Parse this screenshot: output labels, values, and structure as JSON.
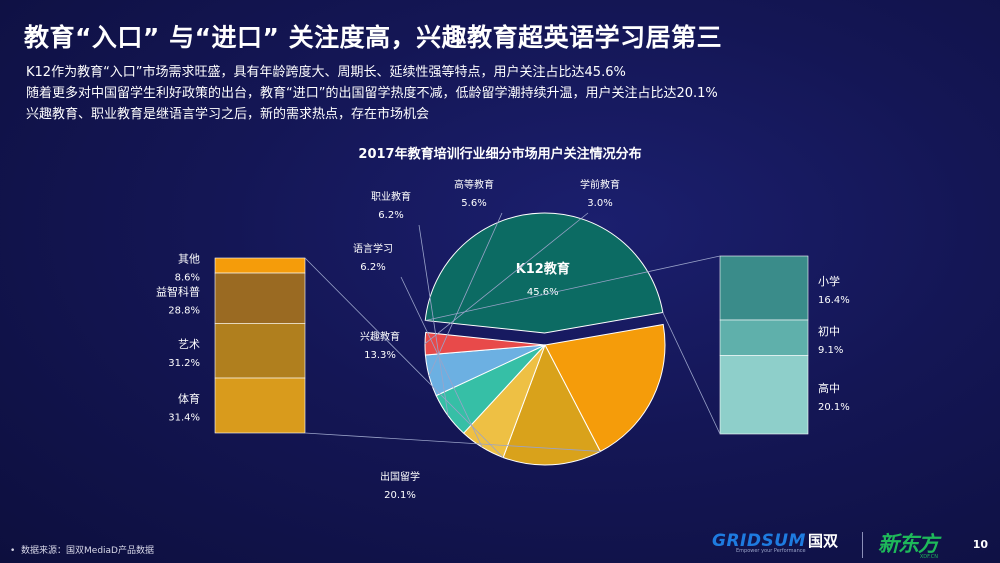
{
  "header": {
    "title": "教育“入口” 与“进口” 关注度高，兴趣教育超英语学习居第三",
    "bullets": [
      "K12作为教育“入口”市场需求旺盛，具有年龄跨度大、周期长、延续性强等特点，用户关注占比达45.6%",
      "随着更多对中国留学生利好政策的出台，教育“进口”的出国留学热度不减，低龄留学潮持续升温，用户关注占比达20.1%",
      "兴趣教育、职业教育是继语言学习之后，新的需求热点，存在市场机会"
    ]
  },
  "chart_data": {
    "type": "pie",
    "title": "2017年教育培训行业细分市场用户关注情况分布",
    "slices": [
      {
        "label": "K12教育",
        "value_label": "45.6%",
        "value": 45.6,
        "color": "#0c6b63"
      },
      {
        "label": "出国留学",
        "value_label": "20.1%",
        "value": 20.1,
        "color": "#f59c0a"
      },
      {
        "label": "兴趣教育",
        "value_label": "13.3%",
        "value": 13.3,
        "color": "#d9a21b"
      },
      {
        "label": "语言学习",
        "value_label": "6.2%",
        "value": 6.2,
        "color": "#eec044"
      },
      {
        "label": "职业教育",
        "value_label": "6.2%",
        "value": 6.2,
        "color": "#36bfa6"
      },
      {
        "label": "高等教育",
        "value_label": "5.6%",
        "value": 5.6,
        "color": "#6cb0e2"
      },
      {
        "label": "学前教育",
        "value_label": "3.0%",
        "value": 3.0,
        "color": "#e84a4a"
      }
    ],
    "left_breakdown": {
      "parent": "兴趣教育",
      "items": [
        {
          "label": "其他",
          "value_label": "8.6%",
          "value": 8.6,
          "color": "#f59c0a"
        },
        {
          "label": "益智科普",
          "value_label": "28.8%",
          "value": 28.8,
          "color": "#9a6a22"
        },
        {
          "label": "艺术",
          "value_label": "31.2%",
          "value": 31.2,
          "color": "#b07f1e"
        },
        {
          "label": "体育",
          "value_label": "31.4%",
          "value": 31.4,
          "color": "#d99b1c"
        }
      ]
    },
    "right_breakdown": {
      "parent": "K12教育",
      "items": [
        {
          "label": "小学",
          "value_label": "16.4%",
          "value": 16.4,
          "color": "#3a8c8a"
        },
        {
          "label": "初中",
          "value_label": "9.1%",
          "value": 9.1,
          "color": "#5fb0ab"
        },
        {
          "label": "高中",
          "value_label": "20.1%",
          "value": 20.1,
          "color": "#8ecfca"
        }
      ]
    }
  },
  "footer": {
    "source": "数据来源：国双MediaD产品数据",
    "page_number": "10",
    "logo_gridsum": "GRIDSUM",
    "logo_gridsum_cn": "国双",
    "logo_gridsum_slogan": "Empower your Performance",
    "logo_xdf": "新东方",
    "logo_xdf_sub": "XDF.CN"
  }
}
